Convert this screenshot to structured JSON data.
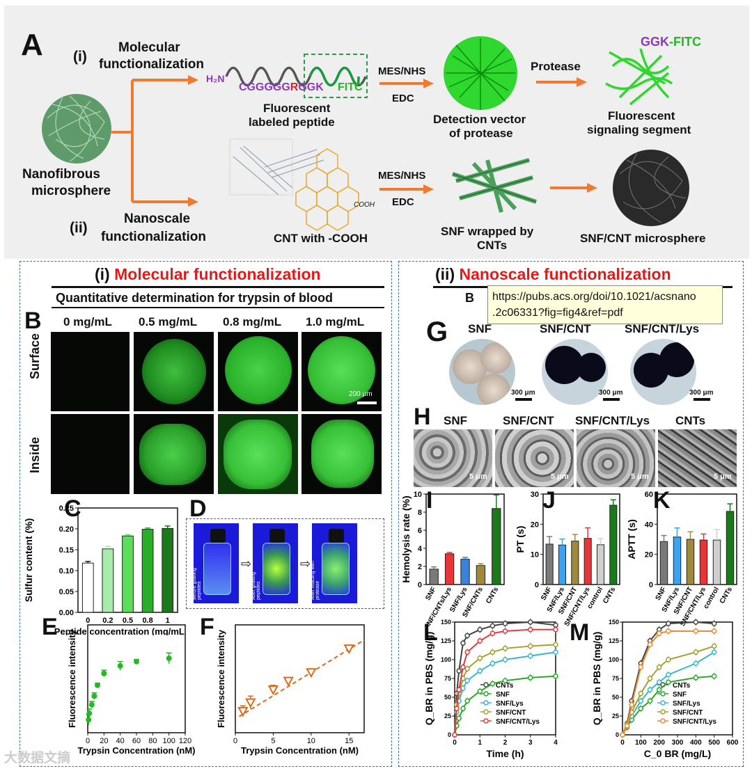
{
  "panelA": {
    "letter": "A",
    "i_label": "(i)",
    "mol_line1": "Molecular",
    "mol_line2": "functionalization",
    "ii_label": "(ii)",
    "nano_line1": "Nanoscale",
    "nano_line2": "functionalization",
    "microsphere_line1": "Nanofibrous",
    "microsphere_line2": "microsphere",
    "h2n": "H₂N",
    "peptide_seq_1": "CGGGGG",
    "peptide_seq_R": "R",
    "peptide_seq_2": "GGK",
    "fitc": "FITC",
    "peptide_cap_1": "Fluorescent",
    "peptide_cap_2": "labeled peptide",
    "mes1": "MES/NHS",
    "edc1": "EDC",
    "mes2": "MES/NHS",
    "edc2": "EDC",
    "vector_1": "Detection vector",
    "vector_2": "of protease",
    "protease": "Protease",
    "ggk": "GGK",
    "dash_fitc": "-FITC",
    "signal_1": "Fluorescent",
    "signal_2": "signaling segment",
    "cooh": "COOH",
    "cnt_cap": "CNT with -COOH",
    "snf_cap_1": "SNF wrapped by",
    "snf_cap_2": "CNTs",
    "snfcnt_cap": "SNF/CNT microsphere"
  },
  "left": {
    "heading_i": "(i)",
    "heading_title": "Molecular functionalization",
    "subtitle": "Quantitative determination for trypsin of blood",
    "B": "B",
    "conc": [
      "0 mg/mL",
      "0.5 mg/mL",
      "0.8 mg/mL",
      "1.0 mg/mL"
    ],
    "row_surface": "Surface",
    "row_inside": "Inside",
    "scale": "200 μm",
    "C": "C",
    "D": "D",
    "E": "E",
    "F": "F",
    "vial_captions": [
      "Before grafting peptides",
      "After grafting peptides",
      "After reacting with protease"
    ]
  },
  "right": {
    "heading_ii": "(ii)",
    "heading_title": "Nanoscale functionalization",
    "heading_cut": "B",
    "G": "G",
    "G_labels": [
      "SNF",
      "SNF/CNT",
      "SNF/CNT/Lys"
    ],
    "G_scale": "300 μm",
    "H": "H",
    "H_labels": [
      "SNF",
      "SNF/CNT",
      "SNF/CNT/Lys",
      "CNTs"
    ],
    "H_scale": "5 μm",
    "I": "I",
    "J": "J",
    "K": "K",
    "L": "L",
    "M": "M"
  },
  "tooltip": {
    "line1": "https://pubs.acs.org/doi/10.1021/acsnano",
    "line2": ".2c06331?fig=fig4&ref=pdf"
  },
  "watermark": "大数据文摘",
  "chart_data": [
    {
      "id": "C",
      "type": "bar",
      "categories": [
        "0",
        "0.2",
        "0.5",
        "0.8",
        "1"
      ],
      "values": [
        0.118,
        0.152,
        0.183,
        0.199,
        0.201
      ],
      "errors": [
        0.004,
        0.006,
        0.003,
        0.003,
        0.006
      ],
      "ylabel": "Sulfur content (%)",
      "xlabel": "Peptide concentration (mg/mL)",
      "ylim": [
        0,
        0.25
      ],
      "yticks": [
        "0.00",
        "0.05",
        "0.10",
        "0.15",
        "0.20",
        "0.25"
      ],
      "colors": [
        "#ffffff",
        "#a8ecac",
        "#5edc5c",
        "#2aae2a",
        "#1a7a1a"
      ]
    },
    {
      "id": "E",
      "type": "scatter",
      "x": [
        1,
        2,
        5,
        8,
        12,
        20,
        40,
        60,
        100
      ],
      "y": [
        0.12,
        0.18,
        0.26,
        0.34,
        0.44,
        0.55,
        0.62,
        0.66,
        0.69
      ],
      "errors": [
        0.05,
        0.04,
        0.03,
        0.03,
        0.02,
        0.03,
        0.04,
        0.02,
        0.05
      ],
      "xlabel": "Trypsin Concentration (nM)",
      "ylabel": "Fluorescence intensity",
      "xticks": [
        "0",
        "20",
        "40",
        "60",
        "80",
        "100",
        "120"
      ],
      "xlim": [
        0,
        120
      ],
      "color": "#22bb22"
    },
    {
      "id": "F",
      "type": "scatter",
      "x": [
        1,
        2,
        5,
        7,
        10,
        15
      ],
      "y": [
        0.2,
        0.28,
        0.4,
        0.48,
        0.56,
        0.78
      ],
      "errors": [
        0.05,
        0.06,
        0.04,
        0.03,
        0.02,
        0.02
      ],
      "xlabel": "Trypsin Concentration (nM)",
      "ylabel": "Fluorescence intensity",
      "xticks": [
        "0",
        "5",
        "10",
        "15"
      ],
      "xlim": [
        0,
        17
      ],
      "color": "#dd6a1a"
    },
    {
      "id": "I",
      "type": "bar",
      "categories": [
        "SNF",
        "SNF/CNTs/Lys",
        "SNF/Lys",
        "SNF/CNTs",
        "CNTs"
      ],
      "values": [
        1.7,
        3.4,
        2.8,
        2.1,
        8.4
      ],
      "errors": [
        0.25,
        0.15,
        0.2,
        0.2,
        1.5
      ],
      "ylabel": "Hemolysis rate (%)",
      "ylim": [
        0,
        10
      ],
      "yticks": [
        "0",
        "2",
        "4",
        "6",
        "8",
        "10"
      ],
      "colors": [
        "#7a7a7a",
        "#e8353a",
        "#3b82d8",
        "#a08a3a",
        "#1a7a1a"
      ]
    },
    {
      "id": "J",
      "type": "bar",
      "categories": [
        "SNF",
        "SNF/Lys",
        "SNF/CNT",
        "SNF/CNT/Lys",
        "control",
        "CNTs"
      ],
      "values": [
        13.4,
        13.1,
        14.4,
        15.3,
        13.2,
        26.3
      ],
      "errors": [
        2.5,
        2.0,
        2.2,
        3.5,
        2.0,
        1.8
      ],
      "ylabel": "PT (s)",
      "ylim": [
        0,
        30
      ],
      "yticks": [
        "0",
        "10",
        "20",
        "30"
      ],
      "colors": [
        "#7a7a7a",
        "#3ba3f0",
        "#a08a3a",
        "#e8353a",
        "#cfcfcf",
        "#1a7a1a"
      ]
    },
    {
      "id": "K",
      "type": "bar",
      "categories": [
        "SNF",
        "SNF/Lys",
        "SNF/CNT",
        "SNF/CNT/Lys",
        "control",
        "CNTs"
      ],
      "values": [
        28.5,
        31.5,
        30,
        29.5,
        29.5,
        48.5
      ],
      "errors": [
        4,
        6,
        5,
        4,
        7,
        5
      ],
      "ylabel": "APTT (s)",
      "ylim": [
        0,
        60
      ],
      "yticks": [
        "0",
        "20",
        "40",
        "60"
      ],
      "colors": [
        "#7a7a7a",
        "#3ba3f0",
        "#a08a3a",
        "#e8353a",
        "#cfcfcf",
        "#1a7a1a"
      ]
    },
    {
      "id": "L",
      "type": "line",
      "xlabel": "Time (h)",
      "ylabel": "Q_BR in PBS (mg/g)",
      "xlim": [
        0,
        4
      ],
      "ylim": [
        0,
        150
      ],
      "xticks": [
        "0",
        "1",
        "2",
        "3",
        "4"
      ],
      "yticks": [
        "0",
        "25",
        "50",
        "75",
        "100",
        "125",
        "150"
      ],
      "series": [
        {
          "name": "CNTs",
          "color": "#444",
          "marker": "circle",
          "x": [
            0,
            0.08,
            0.17,
            0.33,
            0.5,
            1,
            1.5,
            2,
            3,
            4
          ],
          "y": [
            0,
            55,
            85,
            122,
            132,
            140,
            145,
            148,
            150,
            146
          ]
        },
        {
          "name": "SNF",
          "color": "#2aa82a",
          "marker": "square",
          "x": [
            0,
            0.08,
            0.17,
            0.33,
            0.5,
            1,
            1.5,
            2,
            3,
            4
          ],
          "y": [
            0,
            12,
            22,
            35,
            45,
            58,
            68,
            72,
            76,
            78
          ]
        },
        {
          "name": "SNF/Lys",
          "color": "#36b6cc",
          "marker": "triangle",
          "x": [
            0,
            0.08,
            0.17,
            0.33,
            0.5,
            1,
            1.5,
            2,
            3,
            4
          ],
          "y": [
            0,
            30,
            45,
            62,
            72,
            85,
            95,
            100,
            105,
            110
          ]
        },
        {
          "name": "SNF/CNT",
          "color": "#a6a030",
          "marker": "circle-open",
          "x": [
            0,
            0.08,
            0.17,
            0.33,
            0.5,
            1,
            1.5,
            2,
            3,
            4
          ],
          "y": [
            0,
            40,
            55,
            75,
            88,
            102,
            110,
            115,
            118,
            120
          ]
        },
        {
          "name": "SNF/CNT/Lys",
          "color": "#e23a3a",
          "marker": "diamond",
          "x": [
            0,
            0.08,
            0.17,
            0.33,
            0.5,
            1,
            1.5,
            2,
            3,
            4
          ],
          "y": [
            0,
            35,
            60,
            90,
            110,
            125,
            135,
            138,
            140,
            140
          ]
        }
      ]
    },
    {
      "id": "M",
      "type": "line",
      "xlabel": "C_0 BR (mg/L)",
      "ylabel": "Q_BR in PBS (mg/g)",
      "xlim": [
        0,
        600
      ],
      "ylim": [
        0,
        150
      ],
      "xticks": [
        "0",
        "100",
        "200",
        "300",
        "400",
        "500",
        "600"
      ],
      "yticks": [
        "0",
        "25",
        "50",
        "75",
        "100",
        "125",
        "150"
      ],
      "series": [
        {
          "name": "CNTs",
          "color": "#444",
          "marker": "circle",
          "x": [
            0,
            25,
            50,
            100,
            150,
            200,
            250,
            400,
            500
          ],
          "y": [
            0,
            15,
            45,
            95,
            125,
            140,
            148,
            150,
            148
          ]
        },
        {
          "name": "SNF",
          "color": "#2aa82a",
          "marker": "square",
          "x": [
            0,
            25,
            50,
            100,
            150,
            200,
            250,
            400,
            500
          ],
          "y": [
            0,
            10,
            20,
            35,
            45,
            60,
            70,
            76,
            78
          ]
        },
        {
          "name": "SNF/Lys",
          "color": "#36b6cc",
          "marker": "triangle",
          "x": [
            0,
            25,
            50,
            100,
            150,
            200,
            250,
            400,
            500
          ],
          "y": [
            0,
            12,
            25,
            45,
            60,
            70,
            80,
            95,
            110
          ]
        },
        {
          "name": "SNF/CNT",
          "color": "#a6a030",
          "marker": "triangle-down",
          "x": [
            0,
            25,
            50,
            100,
            150,
            200,
            250,
            400,
            500
          ],
          "y": [
            0,
            14,
            30,
            55,
            75,
            90,
            100,
            110,
            118
          ]
        },
        {
          "name": "SNF/CNT/Lys",
          "color": "#f08a30",
          "marker": "diamond",
          "x": [
            0,
            25,
            50,
            100,
            150,
            200,
            250,
            400,
            500
          ],
          "y": [
            0,
            12,
            40,
            90,
            120,
            135,
            138,
            138,
            138
          ]
        }
      ]
    }
  ]
}
